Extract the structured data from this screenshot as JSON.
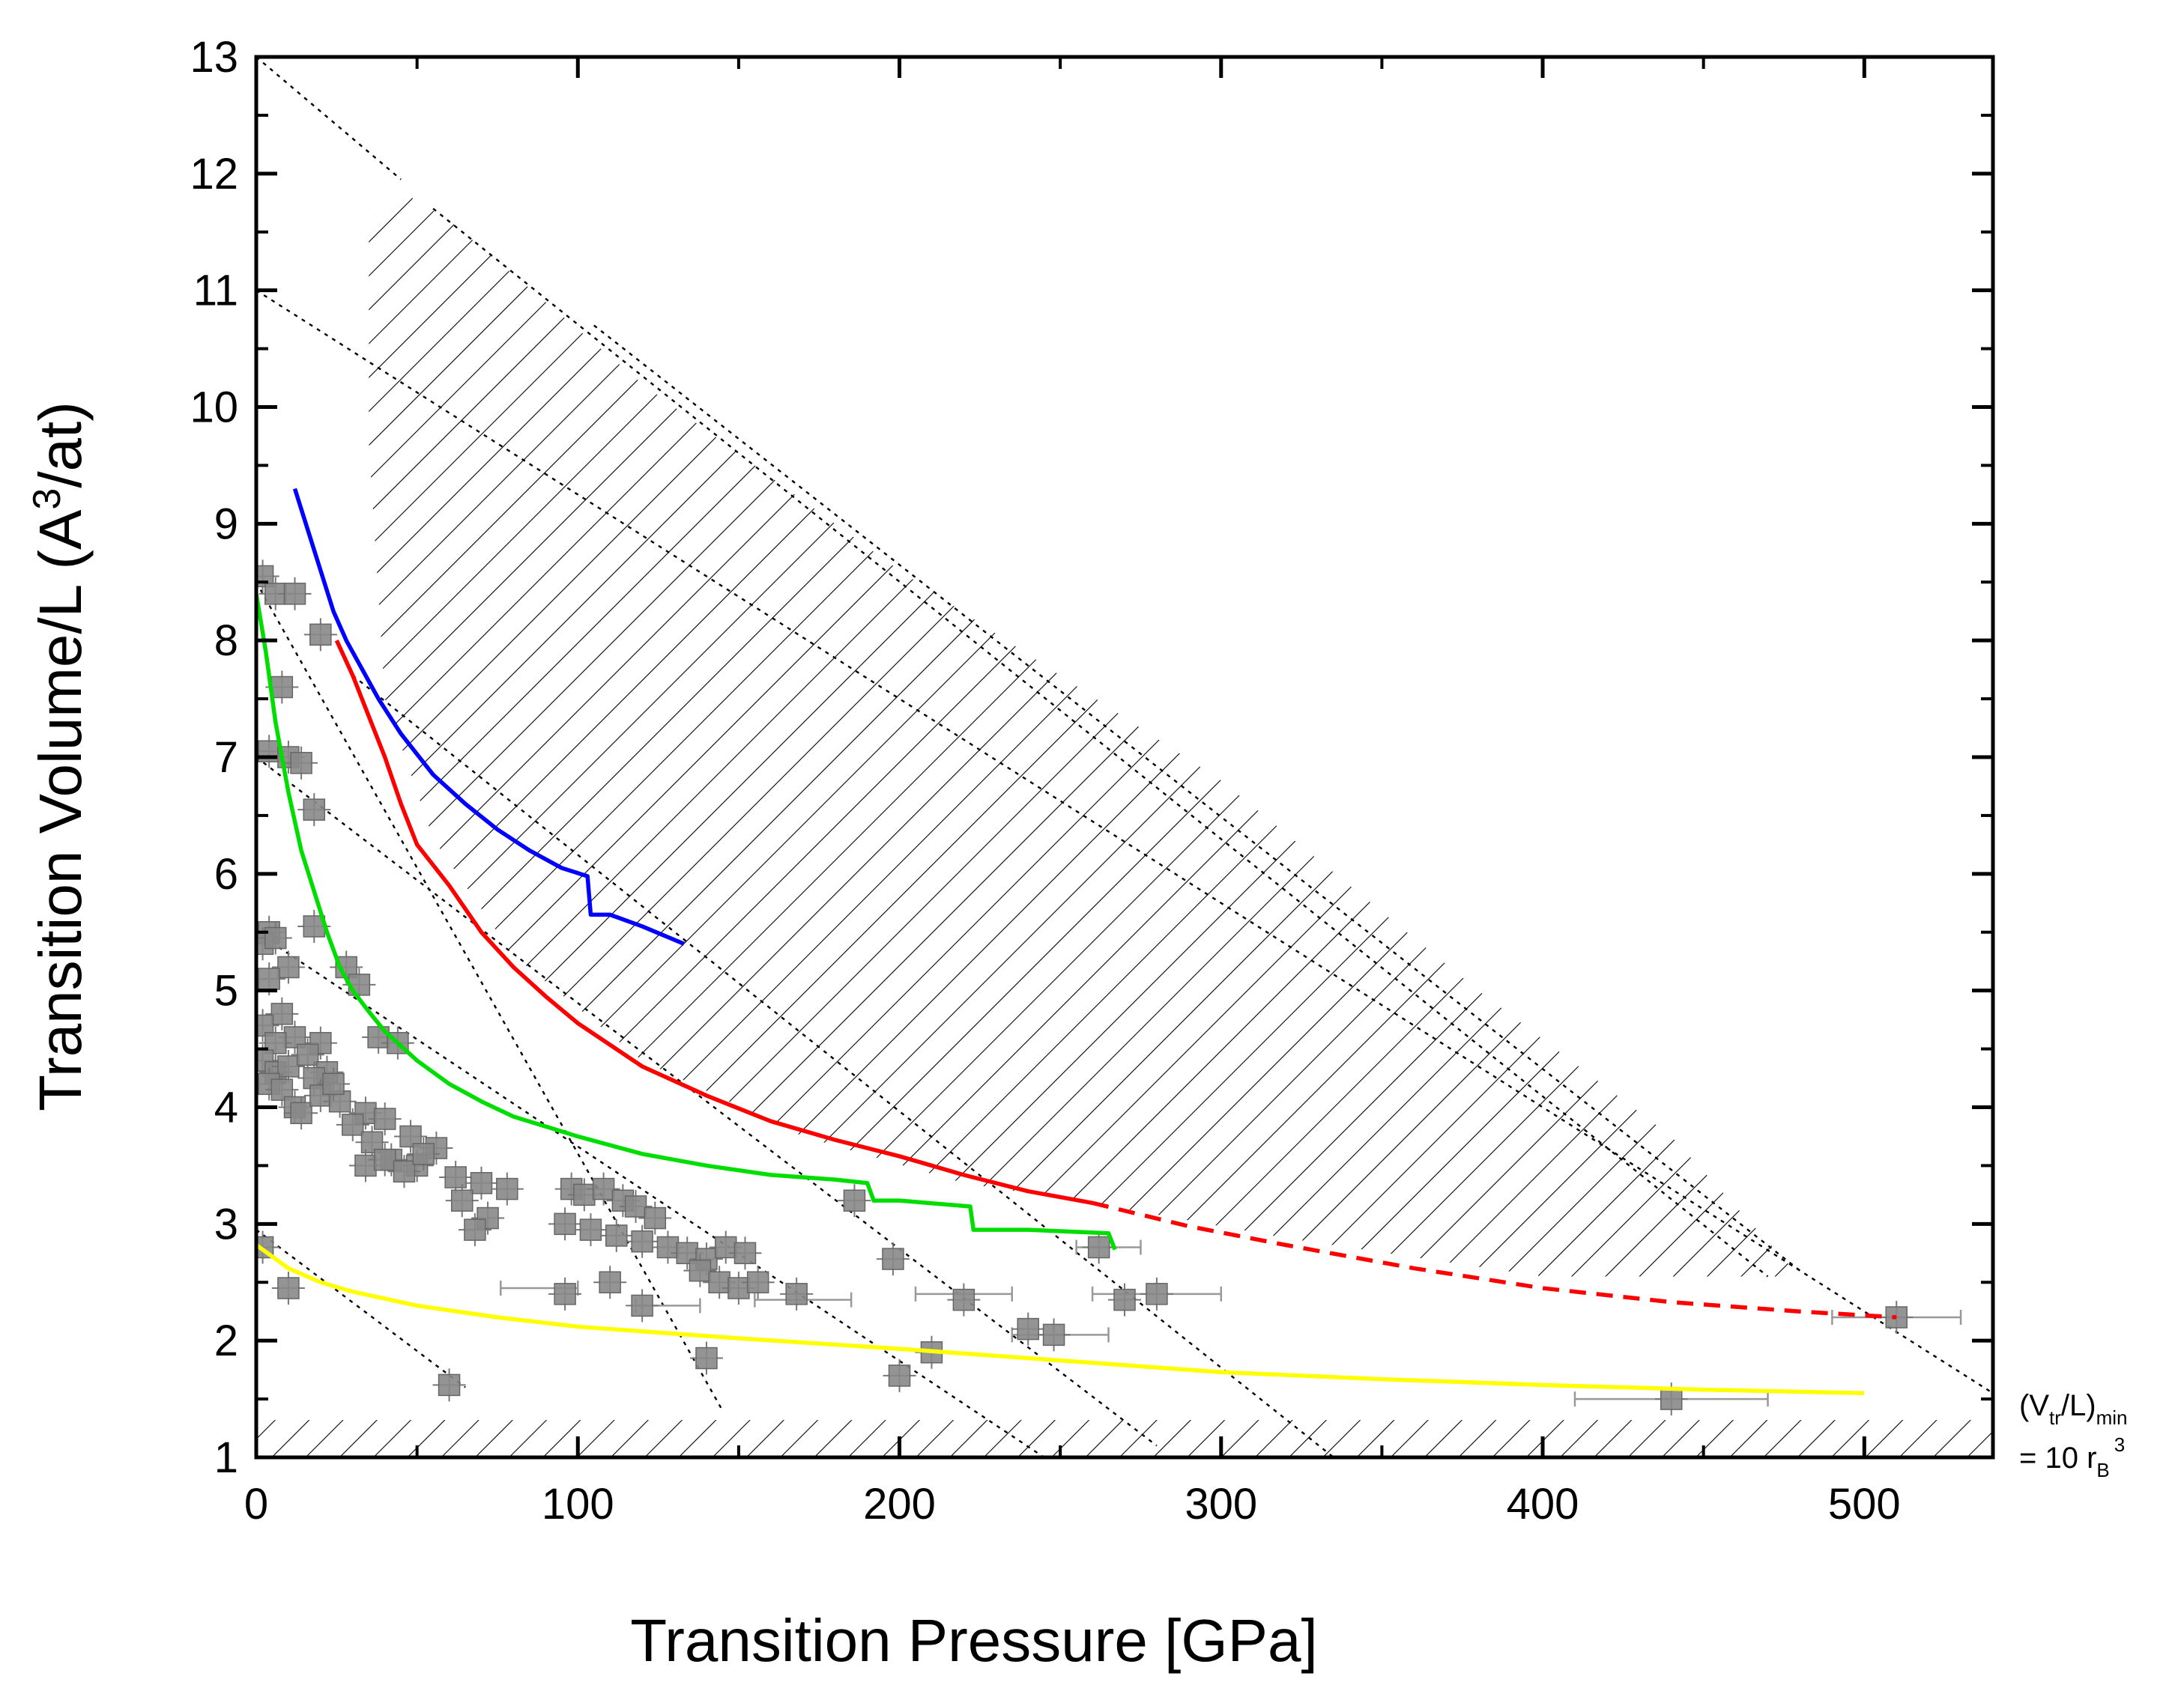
{
  "chart_data": {
    "type": "scatter",
    "title": "",
    "xlabel": "Transition Pressure [GPa]",
    "ylabel_parts": [
      "Transition Volume/L (A",
      "3",
      "/at)"
    ],
    "xlim": [
      0,
      540
    ],
    "ylim": [
      1,
      13
    ],
    "x_ticks": [
      0,
      100,
      200,
      300,
      400,
      500
    ],
    "y_ticks": [
      1,
      2,
      3,
      4,
      5,
      6,
      7,
      8,
      9,
      10,
      11,
      12,
      13
    ],
    "grid": false,
    "annotation": {
      "line1_main": "(V",
      "line1_sub1": "tr",
      "line1_mid": "/L)",
      "line1_sub2": "min",
      "line2_main": "= 10 r",
      "line2_sub": "B",
      "line2_sup": "3"
    },
    "series": [
      {
        "name": "blue curve",
        "color": "#0000ff",
        "style": "solid",
        "x": [
          12,
          16,
          20,
          24,
          28,
          33,
          38,
          45,
          55,
          65,
          75,
          85,
          95,
          103,
          104,
          110,
          120,
          133
        ],
        "y": [
          9.3,
          8.95,
          8.6,
          8.25,
          8.0,
          7.75,
          7.5,
          7.2,
          6.85,
          6.6,
          6.38,
          6.2,
          6.05,
          5.98,
          5.65,
          5.65,
          5.55,
          5.4
        ]
      },
      {
        "name": "red curve",
        "color": "#ff0000",
        "style": "solid",
        "x": [
          25,
          30,
          35,
          40,
          45,
          50,
          60,
          70,
          80,
          90,
          100,
          120,
          140,
          160,
          180,
          200,
          220,
          240,
          260
        ],
        "y": [
          8.0,
          7.7,
          7.35,
          7.0,
          6.6,
          6.25,
          5.9,
          5.5,
          5.2,
          4.95,
          4.72,
          4.35,
          4.1,
          3.88,
          3.72,
          3.58,
          3.42,
          3.28,
          3.18
        ]
      },
      {
        "name": "red dashed extrapolation",
        "color": "#ff0000",
        "style": "dashed",
        "x": [
          260,
          290,
          320,
          360,
          400,
          440,
          480,
          510
        ],
        "y": [
          3.18,
          2.98,
          2.82,
          2.62,
          2.45,
          2.33,
          2.25,
          2.2
        ]
      },
      {
        "name": "green curve",
        "color": "#00dd00",
        "style": "solid",
        "x": [
          0,
          3,
          6,
          10,
          14,
          18,
          22,
          26,
          30,
          35,
          40,
          50,
          60,
          70,
          80,
          100,
          120,
          140,
          160,
          180,
          190,
          192,
          200,
          222,
          223,
          240,
          265,
          267
        ],
        "y": [
          8.4,
          7.9,
          7.3,
          6.7,
          6.2,
          5.85,
          5.5,
          5.2,
          5.0,
          4.82,
          4.65,
          4.4,
          4.2,
          4.05,
          3.92,
          3.75,
          3.6,
          3.5,
          3.42,
          3.38,
          3.35,
          3.2,
          3.2,
          3.15,
          2.95,
          2.95,
          2.92,
          2.78
        ]
      },
      {
        "name": "yellow curve",
        "color": "#ffff00",
        "style": "solid",
        "x": [
          0,
          10,
          20,
          30,
          50,
          75,
          100,
          150,
          200,
          250,
          300,
          350,
          400,
          450,
          500
        ],
        "y": [
          2.82,
          2.62,
          2.5,
          2.42,
          2.3,
          2.2,
          2.12,
          2.02,
          1.93,
          1.83,
          1.73,
          1.67,
          1.62,
          1.58,
          1.55
        ]
      }
    ],
    "dotted_guides": [
      {
        "x": [
          0,
          45
        ],
        "y": [
          13.0,
          11.95
        ]
      },
      {
        "x": [
          0,
          540
        ],
        "y": [
          11.0,
          1.55
        ]
      },
      {
        "x": [
          55,
          470
        ],
        "y": [
          11.7,
          2.55
        ]
      },
      {
        "x": [
          105,
          480
        ],
        "y": [
          10.7,
          2.6
        ]
      },
      {
        "x": [
          0,
          145
        ],
        "y": [
          8.5,
          1.4
        ]
      },
      {
        "x": [
          0,
          280
        ],
        "y": [
          7.0,
          1.1
        ]
      },
      {
        "x": [
          30,
          335
        ],
        "y": [
          7.7,
          1.0
        ]
      },
      {
        "x": [
          0,
          245
        ],
        "y": [
          5.5,
          1.0
        ]
      },
      {
        "x": [
          0,
          65
        ],
        "y": [
          2.95,
          1.6
        ]
      }
    ],
    "hatched_region": {
      "vertices": [
        [
          35,
          11.7
        ],
        [
          35,
          9.7
        ],
        [
          40,
          7.5
        ],
        [
          55,
          6.3
        ],
        [
          80,
          5.3
        ],
        [
          120,
          4.4
        ],
        [
          170,
          3.75
        ],
        [
          220,
          3.35
        ],
        [
          260,
          3.18
        ],
        [
          320,
          2.88
        ],
        [
          400,
          2.55
        ],
        [
          480,
          2.55
        ],
        [
          440,
          3.75
        ],
        [
          380,
          5.0
        ],
        [
          300,
          6.8
        ],
        [
          200,
          8.6
        ],
        [
          120,
          10.2
        ],
        [
          60,
          11.6
        ],
        [
          45,
          11.85
        ]
      ]
    },
    "hatched_floor": {
      "x": [
        0,
        540
      ],
      "y": [
        1.0,
        1.32
      ]
    },
    "data_points": {
      "marker": "square",
      "color": "#888888",
      "x": [
        2,
        6,
        12,
        4,
        8,
        20,
        10,
        4,
        14,
        18,
        2,
        6,
        10,
        4,
        8,
        12,
        2,
        6,
        20,
        28,
        32,
        18,
        38,
        44,
        2,
        6,
        10,
        16,
        22,
        4,
        8,
        12,
        18,
        14,
        20,
        26,
        34,
        40,
        48,
        24,
        30,
        36,
        42,
        50,
        56,
        34,
        40,
        46,
        52,
        62,
        70,
        78,
        64,
        72,
        68,
        98,
        102,
        108,
        114,
        118,
        124,
        96,
        104,
        112,
        120,
        128,
        134,
        140,
        146,
        152,
        138,
        144,
        150,
        2,
        10,
        96,
        110,
        120,
        140,
        156,
        168,
        186,
        198,
        220,
        240,
        248,
        262,
        270,
        200,
        210,
        280,
        510,
        440,
        60
      ],
      "y": [
        8.55,
        8.4,
        8.4,
        7.05,
        7.6,
        8.05,
        7.0,
        5.5,
        6.95,
        6.55,
        5.4,
        5.45,
        5.2,
        5.1,
        4.8,
        4.6,
        4.7,
        4.55,
        4.55,
        5.2,
        5.05,
        5.55,
        4.6,
        4.55,
        4.4,
        4.3,
        4.35,
        4.45,
        4.3,
        4.2,
        4.15,
        4.0,
        4.25,
        3.95,
        4.1,
        4.05,
        3.95,
        3.9,
        3.75,
        4.2,
        3.85,
        3.7,
        3.55,
        3.5,
        3.65,
        3.5,
        3.55,
        3.45,
        3.6,
        3.4,
        3.35,
        3.3,
        3.2,
        3.05,
        2.95,
        3.3,
        3.25,
        3.3,
        3.2,
        3.15,
        3.05,
        3.0,
        2.95,
        2.9,
        2.85,
        2.8,
        2.75,
        2.7,
        2.8,
        2.75,
        2.6,
        2.5,
        2.45,
        2.8,
        2.45,
        2.4,
        2.5,
        2.3,
        1.85,
        2.5,
        2.4,
        3.2,
        2.7,
        2.35,
        2.1,
        2.05,
        2.8,
        2.35,
        1.7,
        1.9,
        2.4,
        2.2,
        1.5,
        1.62
      ],
      "horizontal_error_bars": [
        {
          "x": 88,
          "y": 2.45,
          "xerr": 12
        },
        {
          "x": 170,
          "y": 2.35,
          "xerr": 15
        },
        {
          "x": 220,
          "y": 2.4,
          "xerr": 15
        },
        {
          "x": 280,
          "y": 2.4,
          "xerr": 20
        },
        {
          "x": 250,
          "y": 2.05,
          "xerr": 15
        },
        {
          "x": 440,
          "y": 1.5,
          "xerr": 30
        },
        {
          "x": 510,
          "y": 2.2,
          "xerr": 20
        },
        {
          "x": 128,
          "y": 2.3,
          "xerr": 10
        },
        {
          "x": 265,
          "y": 2.8,
          "xerr": 10
        }
      ]
    }
  }
}
